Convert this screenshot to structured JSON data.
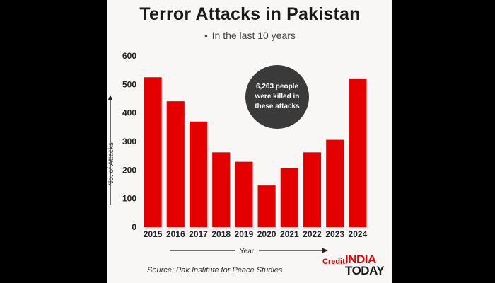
{
  "card": {
    "title": "Terror Attacks in Pakistan",
    "subtitle": "In the last 10 years",
    "source": "Source: Pak Institute for Peace Studies",
    "credit_label": "Credit:",
    "logo_line1": "INDIA",
    "logo_line2": "TODAY"
  },
  "colors": {
    "bar": "#e50000",
    "bubble": "#3a3a3a",
    "background": "#f8f7f5"
  },
  "chart_data": {
    "type": "bar",
    "title": "Terror Attacks in Pakistan",
    "subtitle": "In the last 10 years",
    "xlabel": "Year",
    "ylabel": "No. of Attacks",
    "categories": [
      "2015",
      "2016",
      "2017",
      "2018",
      "2019",
      "2020",
      "2021",
      "2022",
      "2023",
      "2024"
    ],
    "values": [
      525,
      441,
      370,
      262,
      229,
      146,
      207,
      262,
      306,
      521
    ],
    "ylim": [
      0,
      600
    ],
    "yticks": [
      0,
      100,
      200,
      300,
      400,
      500,
      600
    ],
    "grid": false,
    "annotation": [
      "6,263 people",
      "were killed in",
      "these attacks"
    ]
  }
}
